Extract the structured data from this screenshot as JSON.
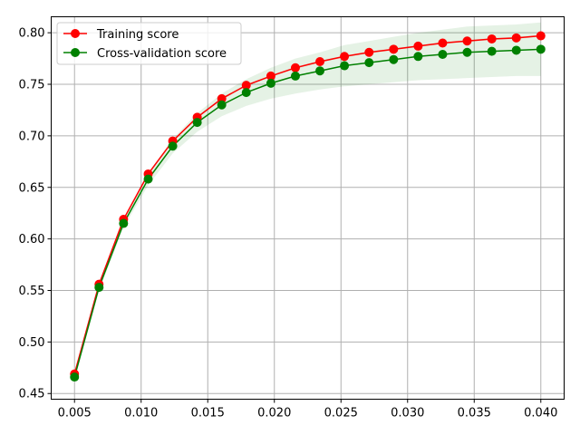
{
  "chart_data": {
    "type": "line",
    "title": "",
    "xlabel": "",
    "ylabel": "",
    "xlim": [
      0.00325,
      0.04175
    ],
    "ylim": [
      0.4445,
      0.8155
    ],
    "grid": true,
    "legend_position": "top-left",
    "x_ticks": [
      0.005,
      0.01,
      0.015,
      0.02,
      0.025,
      0.03,
      0.035,
      0.04
    ],
    "x_tick_labels": [
      "0.005",
      "0.010",
      "0.015",
      "0.020",
      "0.025",
      "0.030",
      "0.035",
      "0.040"
    ],
    "y_ticks": [
      0.45,
      0.5,
      0.55,
      0.6,
      0.65,
      0.7,
      0.75,
      0.8
    ],
    "y_tick_labels": [
      "0.45",
      "0.50",
      "0.55",
      "0.60",
      "0.65",
      "0.70",
      "0.75",
      "0.80"
    ],
    "x": [
      0.005,
      0.00684,
      0.00868,
      0.01053,
      0.01237,
      0.01421,
      0.01605,
      0.01789,
      0.01974,
      0.02158,
      0.02342,
      0.02526,
      0.02711,
      0.02895,
      0.03079,
      0.03263,
      0.03447,
      0.03632,
      0.03816,
      0.04
    ],
    "series": [
      {
        "name": "Training score",
        "color": "#ff0000",
        "values": [
          0.469,
          0.556,
          0.619,
          0.663,
          0.695,
          0.718,
          0.736,
          0.749,
          0.758,
          0.766,
          0.772,
          0.777,
          0.781,
          0.784,
          0.787,
          0.79,
          0.792,
          0.794,
          0.795,
          0.797
        ],
        "band_lower": [
          0.468,
          0.555,
          0.618,
          0.662,
          0.694,
          0.717,
          0.735,
          0.748,
          0.757,
          0.765,
          0.771,
          0.776,
          0.78,
          0.783,
          0.786,
          0.789,
          0.791,
          0.793,
          0.794,
          0.796
        ],
        "band_upper": [
          0.47,
          0.557,
          0.62,
          0.664,
          0.696,
          0.719,
          0.737,
          0.75,
          0.759,
          0.767,
          0.773,
          0.778,
          0.782,
          0.785,
          0.788,
          0.791,
          0.793,
          0.795,
          0.796,
          0.798
        ]
      },
      {
        "name": "Cross-validation score",
        "color": "#008000",
        "values": [
          0.466,
          0.553,
          0.615,
          0.658,
          0.69,
          0.713,
          0.73,
          0.742,
          0.751,
          0.758,
          0.763,
          0.768,
          0.771,
          0.774,
          0.777,
          0.779,
          0.781,
          0.782,
          0.783,
          0.784
        ],
        "band_lower": [
          0.464,
          0.55,
          0.611,
          0.652,
          0.683,
          0.704,
          0.719,
          0.729,
          0.736,
          0.741,
          0.745,
          0.748,
          0.75,
          0.752,
          0.754,
          0.755,
          0.756,
          0.757,
          0.758,
          0.758
        ],
        "band_upper": [
          0.468,
          0.556,
          0.619,
          0.664,
          0.697,
          0.722,
          0.741,
          0.755,
          0.766,
          0.775,
          0.781,
          0.788,
          0.792,
          0.796,
          0.8,
          0.803,
          0.806,
          0.807,
          0.808,
          0.81
        ]
      }
    ]
  }
}
